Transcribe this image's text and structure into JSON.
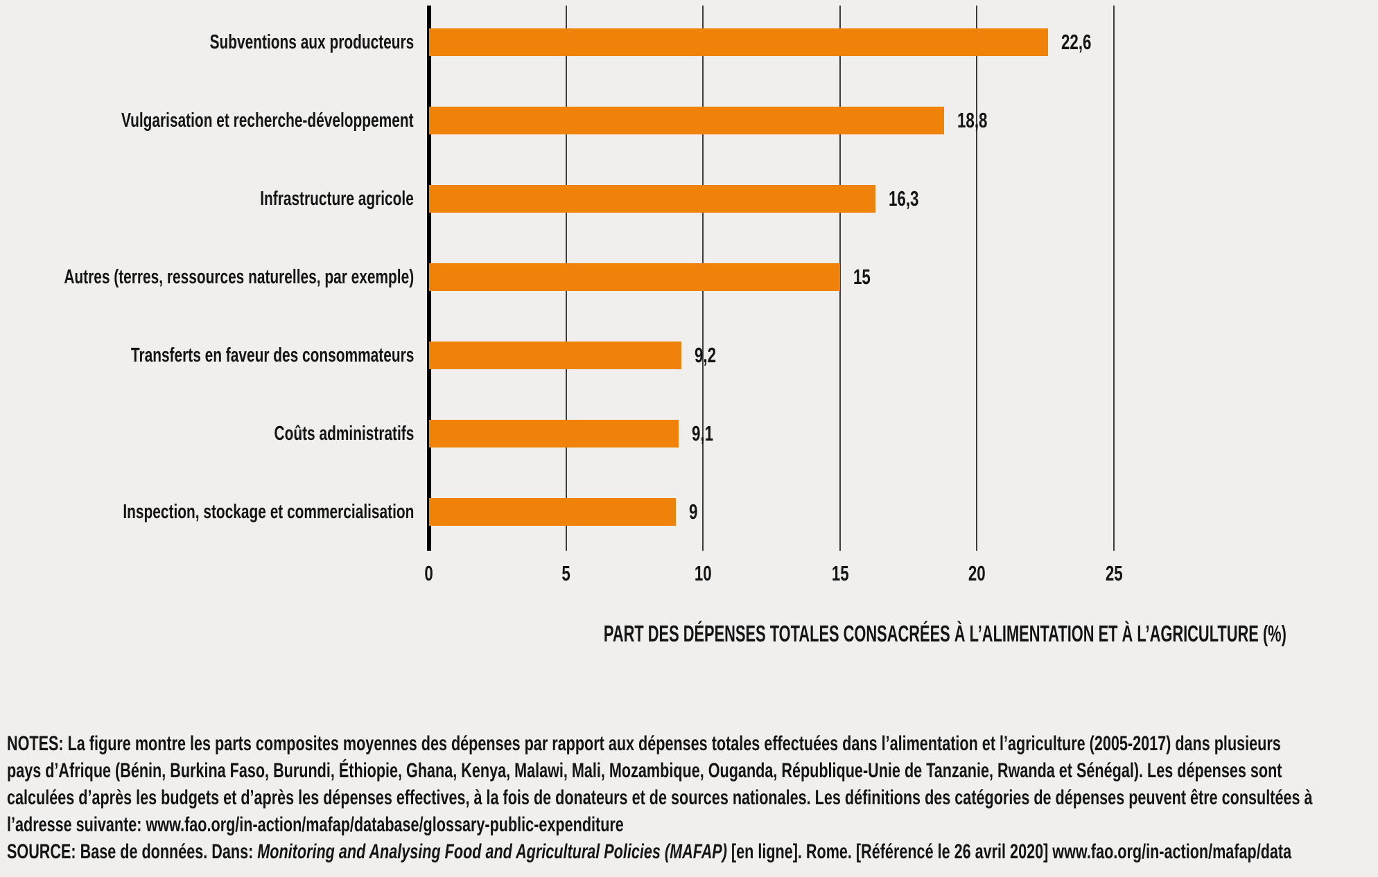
{
  "colors": {
    "bar": "#F0820A",
    "background": "#F0EFED",
    "text": "#141414",
    "grid": "#3C3C3C",
    "axis": "#000000"
  },
  "chart_data": {
    "type": "bar",
    "orientation": "horizontal",
    "title": "",
    "categories": [
      "Subventions aux producteurs",
      "Vulgarisation et recherche-développement",
      "Infrastructure agricole",
      "Autres (terres, ressources naturelles, par exemple)",
      "Transferts en faveur des consommateurs",
      "Coûts administratifs",
      "Inspection, stockage et commercialisation"
    ],
    "values": [
      22.6,
      18.8,
      16.3,
      15,
      9.2,
      9.1,
      9
    ],
    "value_labels": [
      "22,6",
      "18,8",
      "16,3",
      "15",
      "9,2",
      "9,1",
      "9"
    ],
    "xlabel": "PART DES DÉPENSES TOTALES CONSACRÉES À L’ALIMENTATION ET À L’AGRICULTURE (%)",
    "ylabel": "",
    "xlim": [
      0,
      25
    ],
    "xticks": [
      0,
      5,
      10,
      15,
      20,
      25
    ],
    "xtick_labels": [
      "0",
      "5",
      "10",
      "15",
      "20",
      "25"
    ],
    "grid": "vertical",
    "legend": "none"
  },
  "notes": {
    "lines": [
      "NOTES: La figure montre les parts composites moyennes des dépenses par rapport aux dépenses totales effectuées dans l’alimentation et l’agriculture (2005-2017) dans plusieurs",
      "pays d’Afrique (Bénin, Burkina Faso, Burundi, Éthiopie, Ghana, Kenya, Malawi, Mali, Mozambique, Ouganda, République-Unie de Tanzanie, Rwanda et Sénégal). Les dépenses sont",
      "calculées d’après les budgets et d’après les dépenses effectives, à la fois de donateurs et de sources nationales. Les définitions des catégories de dépenses peuvent être consultées à",
      "l’adresse suivante: www.fao.org/in-action/mafap/database/glossary-public-expenditure"
    ]
  },
  "source": {
    "prefix": "SOURCE: Base de données. Dans: ",
    "italic": "Monitoring and Analysing Food and Agricultural Policies (MAFAP)",
    "suffix": " [en ligne]. Rome. [Référencé le 26 avril 2020] www.fao.org/in-action/mafap/data"
  }
}
